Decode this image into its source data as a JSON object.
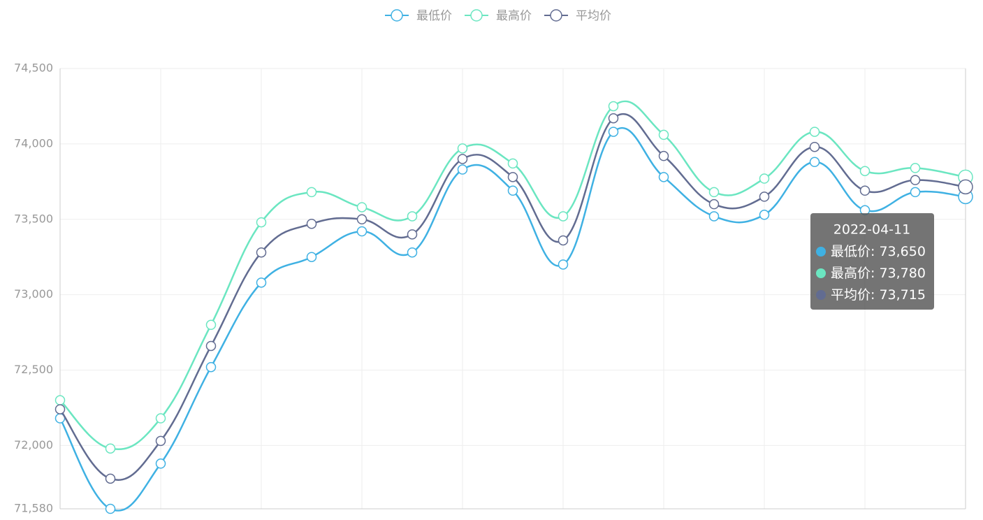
{
  "chart_data": {
    "type": "line",
    "categories": [
      null,
      null,
      null,
      null,
      null,
      null,
      null,
      null,
      null,
      null,
      null,
      null,
      null,
      null,
      null,
      null,
      null,
      null,
      null
    ],
    "series": [
      {
        "name": "最低价",
        "color": "#3fb1e3",
        "values": [
          72180,
          71580,
          71880,
          72520,
          73080,
          73250,
          73420,
          73280,
          73830,
          73690,
          73200,
          74080,
          73780,
          73520,
          73530,
          73880,
          73560,
          73680,
          73650
        ]
      },
      {
        "name": "最高价",
        "color": "#6be6c1",
        "values": [
          72300,
          71980,
          72180,
          72800,
          73480,
          73680,
          73580,
          73520,
          73970,
          73870,
          73520,
          74250,
          74060,
          73680,
          73770,
          74080,
          73820,
          73840,
          73780
        ]
      },
      {
        "name": "平均价",
        "color": "#626c91",
        "values": [
          72240,
          71780,
          72030,
          72660,
          73280,
          73470,
          73500,
          73400,
          73900,
          73780,
          73360,
          74170,
          73920,
          73600,
          73650,
          73980,
          73690,
          73760,
          73715
        ]
      }
    ],
    "ylim": [
      71580,
      74500
    ],
    "yticks": [
      {
        "value": 71580,
        "label": "71,580"
      },
      {
        "value": 72000,
        "label": "72,000"
      },
      {
        "value": 72500,
        "label": "72,500"
      },
      {
        "value": 73000,
        "label": "73,000"
      },
      {
        "value": 73500,
        "label": "73,500"
      },
      {
        "value": 74000,
        "label": "74,000"
      },
      {
        "value": 74500,
        "label": "74,500"
      }
    ],
    "grid": true,
    "legend": "top",
    "tooltip": {
      "x": "2022-04-11",
      "labels": [
        "73,650",
        "73,780",
        "73,715"
      ]
    }
  }
}
